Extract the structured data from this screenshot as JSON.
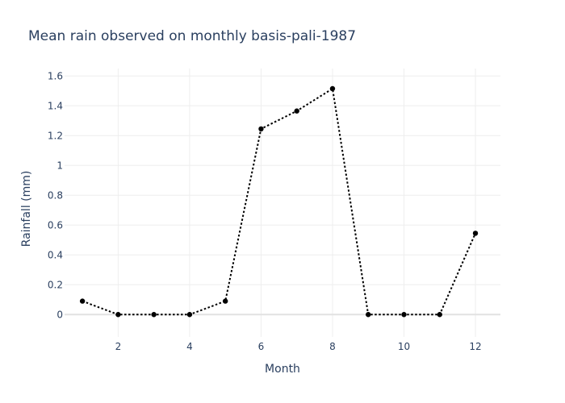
{
  "chart_data": {
    "type": "line",
    "title": "Mean rain observed on monthly basis-pali-1987",
    "xlabel": "Month",
    "ylabel": "Rainfall (mm)",
    "x": [
      1,
      2,
      3,
      4,
      5,
      6,
      7,
      8,
      9,
      10,
      11,
      12
    ],
    "series": [
      {
        "values": [
          0.09,
          0,
          0,
          0,
          0.09,
          1.245,
          1.365,
          1.515,
          0,
          0,
          0,
          0.545
        ],
        "line_style": "dotted",
        "marker": "circle",
        "color": "#000000"
      }
    ],
    "xlim": [
      0.5,
      12.7
    ],
    "ylim": [
      -0.15,
      1.65
    ],
    "xticks": [
      2,
      4,
      6,
      8,
      10,
      12
    ],
    "xtick_labels": [
      "2",
      "4",
      "6",
      "8",
      "10",
      "12"
    ],
    "yticks": [
      0,
      0.2,
      0.4,
      0.6,
      0.8,
      1,
      1.2,
      1.4,
      1.6
    ],
    "ytick_labels": [
      "0",
      "0.2",
      "0.4",
      "0.6",
      "0.8",
      "1",
      "1.2",
      "1.4",
      "1.6"
    ],
    "grid": true,
    "legend": "none",
    "colors": {
      "text": "#2a3f5f",
      "grid": "#eeeeee",
      "zeroline": "#e2e2e2",
      "series": "#000000"
    }
  }
}
